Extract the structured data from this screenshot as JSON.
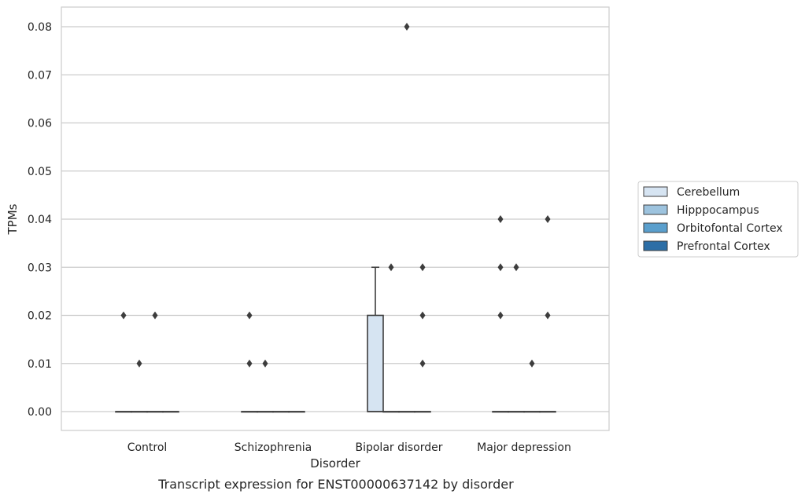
{
  "chart_data": {
    "type": "box",
    "caption": "Transcript expression for ENST00000637142 by disorder",
    "xlabel": "Disorder",
    "ylabel": "TPMs",
    "ylim": [
      -0.004,
      0.084
    ],
    "yticks": [
      0.0,
      0.01,
      0.02,
      0.03,
      0.04,
      0.05,
      0.06,
      0.07,
      0.08
    ],
    "ytick_labels": [
      "0.00",
      "0.01",
      "0.02",
      "0.03",
      "0.04",
      "0.05",
      "0.06",
      "0.07",
      "0.08"
    ],
    "grid": true,
    "legend_position": "right",
    "categories": [
      "Control",
      "Schizophrenia",
      "Bipolar disorder",
      "Major depression"
    ],
    "series": [
      {
        "name": "Cerebellum",
        "color": "#d6e4f2",
        "boxes": [
          {
            "q1": 0,
            "median": 0,
            "q3": 0,
            "whisker_low": 0,
            "whisker_high": 0,
            "outliers": [
              0.02
            ]
          },
          {
            "q1": 0,
            "median": 0,
            "q3": 0,
            "whisker_low": 0,
            "whisker_high": 0,
            "outliers": [
              0.02,
              0.01
            ]
          },
          {
            "q1": 0,
            "median": 0,
            "q3": 0.02,
            "whisker_low": 0,
            "whisker_high": 0.03,
            "outliers": []
          },
          {
            "q1": 0,
            "median": 0,
            "q3": 0,
            "whisker_low": 0,
            "whisker_high": 0,
            "outliers": [
              0.04,
              0.03,
              0.02
            ]
          }
        ]
      },
      {
        "name": "Hipppocampus",
        "color": "#9dc3de",
        "boxes": [
          {
            "q1": 0,
            "median": 0,
            "q3": 0,
            "whisker_low": 0,
            "whisker_high": 0,
            "outliers": [
              0.01
            ]
          },
          {
            "q1": 0,
            "median": 0,
            "q3": 0,
            "whisker_low": 0,
            "whisker_high": 0,
            "outliers": [
              0.01
            ]
          },
          {
            "q1": 0,
            "median": 0,
            "q3": 0,
            "whisker_low": 0,
            "whisker_high": 0,
            "outliers": [
              0.03
            ]
          },
          {
            "q1": 0,
            "median": 0,
            "q3": 0,
            "whisker_low": 0,
            "whisker_high": 0,
            "outliers": [
              0.03
            ]
          }
        ]
      },
      {
        "name": "Orbitofontal Cortex",
        "color": "#5a9fcd",
        "boxes": [
          {
            "q1": 0,
            "median": 0,
            "q3": 0,
            "whisker_low": 0,
            "whisker_high": 0,
            "outliers": [
              0.02
            ]
          },
          {
            "q1": 0,
            "median": 0,
            "q3": 0,
            "whisker_low": 0,
            "whisker_high": 0,
            "outliers": []
          },
          {
            "q1": 0,
            "median": 0,
            "q3": 0,
            "whisker_low": 0,
            "whisker_high": 0,
            "outliers": [
              0.08
            ]
          },
          {
            "q1": 0,
            "median": 0,
            "q3": 0,
            "whisker_low": 0,
            "whisker_high": 0,
            "outliers": [
              0.01
            ]
          }
        ]
      },
      {
        "name": "Prefrontal Cortex",
        "color": "#2c6ea6",
        "boxes": [
          {
            "q1": 0,
            "median": 0,
            "q3": 0,
            "whisker_low": 0,
            "whisker_high": 0,
            "outliers": []
          },
          {
            "q1": 0,
            "median": 0,
            "q3": 0,
            "whisker_low": 0,
            "whisker_high": 0,
            "outliers": []
          },
          {
            "q1": 0,
            "median": 0,
            "q3": 0,
            "whisker_low": 0,
            "whisker_high": 0,
            "outliers": [
              0.03,
              0.02,
              0.01
            ]
          },
          {
            "q1": 0,
            "median": 0,
            "q3": 0,
            "whisker_low": 0,
            "whisker_high": 0,
            "outliers": [
              0.04,
              0.02
            ]
          }
        ]
      }
    ]
  }
}
